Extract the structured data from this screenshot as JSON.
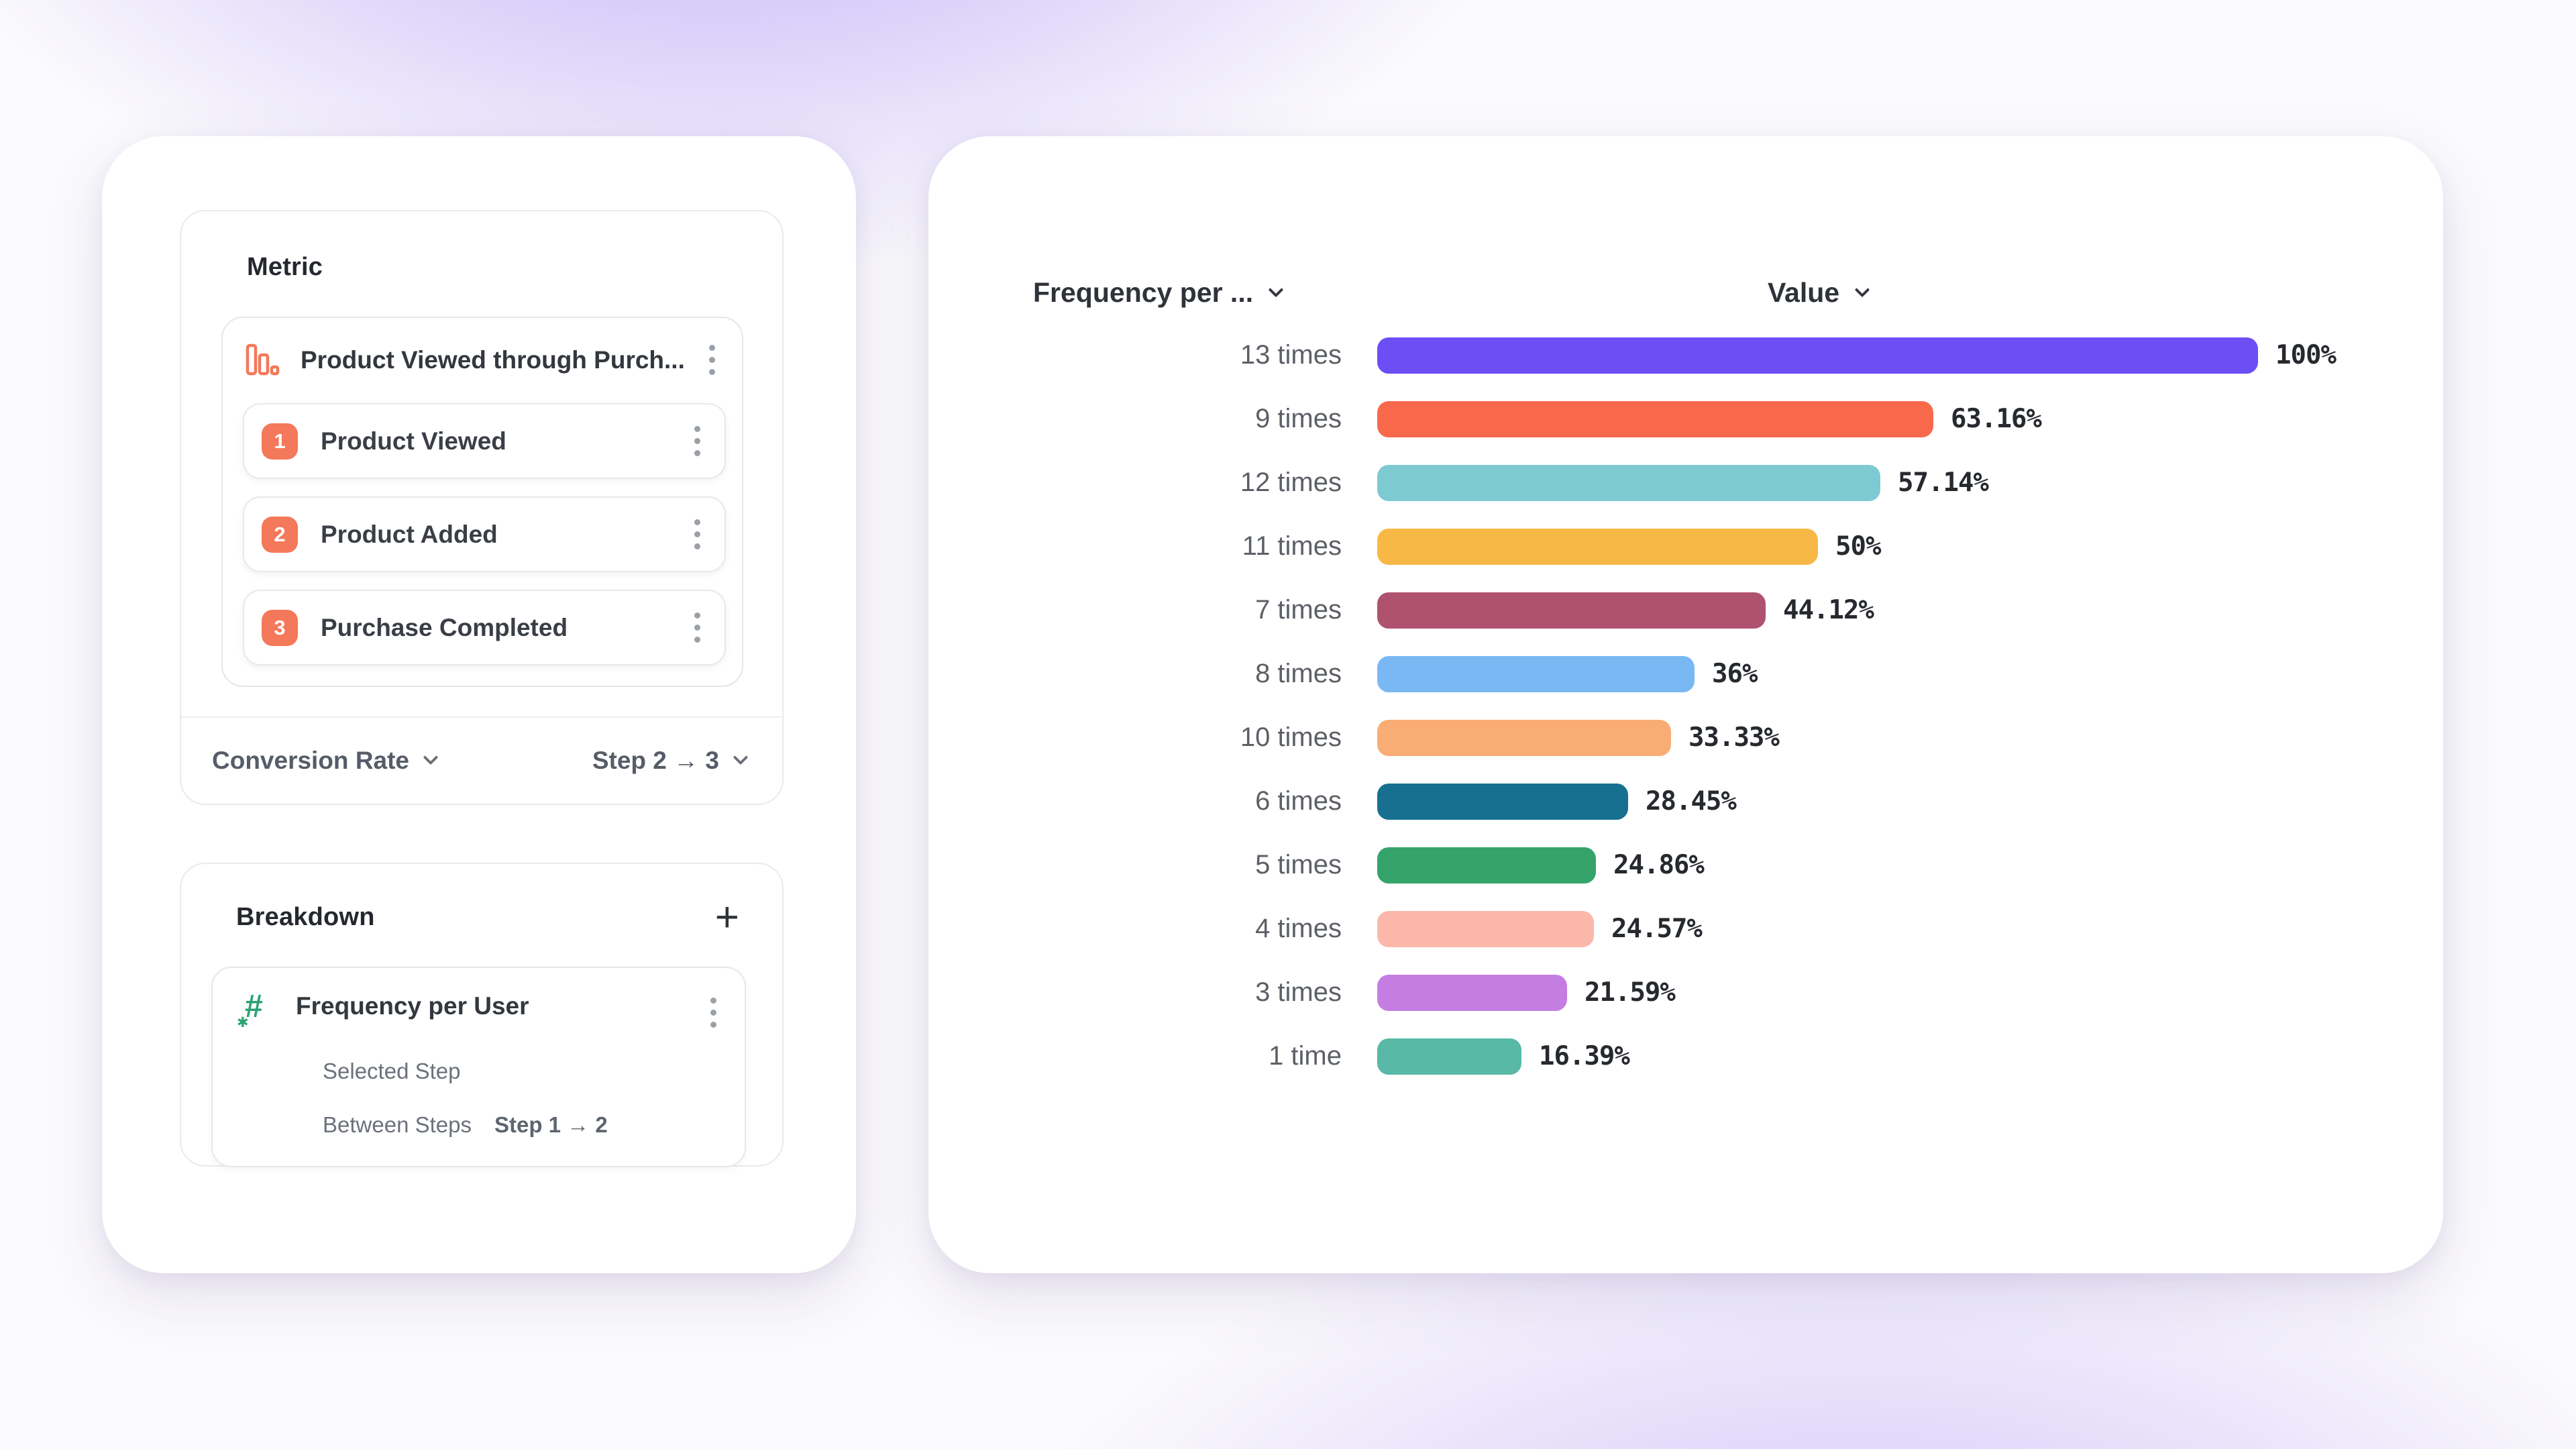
{
  "theme": {
    "accent": "#F4785A",
    "green": "#2AA374",
    "glow_purple": "#7C58F2",
    "card_bg": "#FFFFFF"
  },
  "metric_panel": {
    "title": "Metric",
    "funnel": {
      "name": "Product Viewed through Purch...",
      "icon": "bar-chart-icon",
      "steps": [
        {
          "number": "1",
          "label": "Product Viewed"
        },
        {
          "number": "2",
          "label": "Product Added"
        },
        {
          "number": "3",
          "label": "Purchase Completed"
        }
      ]
    },
    "footer": {
      "left_label": "Conversion Rate",
      "right_label": "Step 2 → 3"
    }
  },
  "breakdown_panel": {
    "title": "Breakdown",
    "add_label": "+",
    "item": {
      "name": "Frequency per User",
      "icon": "hash-icon",
      "spark": "✱",
      "hash": "#",
      "rows": [
        {
          "label": "Selected Step",
          "value": ""
        },
        {
          "label": "Between Steps",
          "value": "Step 1 → 2"
        }
      ]
    }
  },
  "chart": {
    "columns": [
      {
        "label": "Frequency per ..."
      },
      {
        "label": "Value"
      }
    ]
  },
  "chart_data": {
    "type": "bar",
    "orientation": "horizontal",
    "title": "",
    "xlabel": "Value",
    "ylabel": "Frequency per ...",
    "xlim": [
      0,
      100
    ],
    "grid": false,
    "categories": [
      "13 times",
      "9 times",
      "12 times",
      "11 times",
      "7 times",
      "8 times",
      "10 times",
      "6 times",
      "5 times",
      "4 times",
      "3 times",
      "1 time"
    ],
    "values": [
      100,
      63.16,
      57.14,
      50,
      44.12,
      36,
      33.33,
      28.45,
      24.86,
      24.57,
      21.59,
      16.39
    ],
    "value_labels": [
      "100%",
      "63.16%",
      "57.14%",
      "50%",
      "44.12%",
      "36%",
      "33.33%",
      "28.45%",
      "24.86%",
      "24.57%",
      "21.59%",
      "16.39%"
    ],
    "colors": [
      "#6C4EF5",
      "#F8694C",
      "#7DCAD3",
      "#F8B845",
      "#AF5270",
      "#7AB8F3",
      "#FAAC75",
      "#187090",
      "#36A36B",
      "#FBB8AA",
      "#C47DE1",
      "#57B9A6"
    ]
  }
}
